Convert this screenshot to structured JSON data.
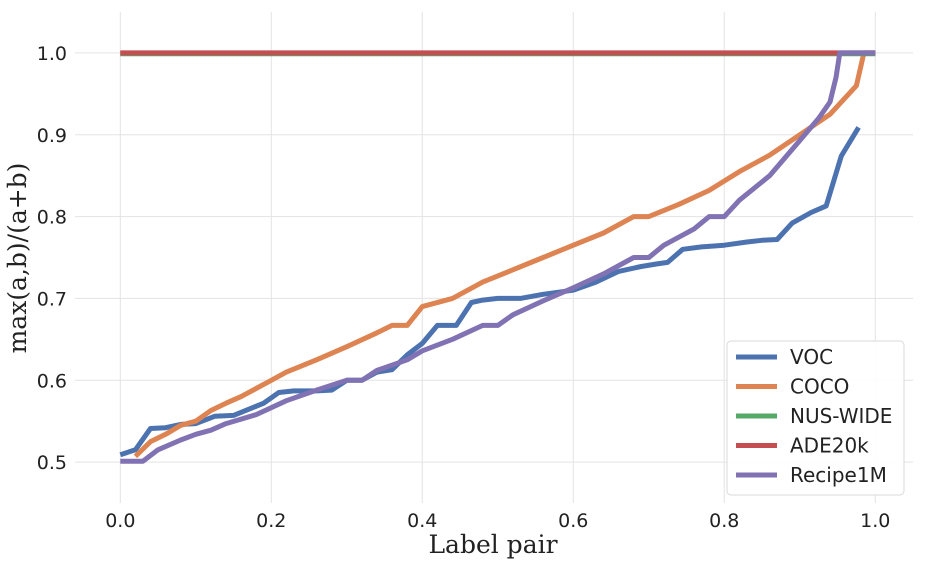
{
  "chart_data": {
    "type": "line",
    "xlabel": "Label pair",
    "ylabel": "max(a,b)/(a+b)",
    "xlim": [
      -0.06,
      1.05
    ],
    "ylim": [
      0.45,
      1.05
    ],
    "xticks": [
      0.0,
      0.2,
      0.4,
      0.6,
      0.8,
      1.0
    ],
    "xtick_labels": [
      "0.0",
      "0.2",
      "0.4",
      "0.6",
      "0.8",
      "1.0"
    ],
    "yticks": [
      0.5,
      0.6,
      0.7,
      0.8,
      0.9,
      1.0
    ],
    "ytick_labels": [
      "0.5",
      "0.6",
      "0.7",
      "0.8",
      "0.9",
      "1.0"
    ],
    "grid": true,
    "legend_position": "bottom-right",
    "series": [
      {
        "name": "VOC",
        "color": "#4c72b0",
        "points": [
          [
            0.0,
            0.509
          ],
          [
            0.02,
            0.515
          ],
          [
            0.04,
            0.541
          ],
          [
            0.06,
            0.542
          ],
          [
            0.08,
            0.546
          ],
          [
            0.1,
            0.547
          ],
          [
            0.125,
            0.556
          ],
          [
            0.15,
            0.557
          ],
          [
            0.19,
            0.572
          ],
          [
            0.21,
            0.585
          ],
          [
            0.23,
            0.587
          ],
          [
            0.26,
            0.587
          ],
          [
            0.28,
            0.588
          ],
          [
            0.3,
            0.6
          ],
          [
            0.32,
            0.6
          ],
          [
            0.34,
            0.61
          ],
          [
            0.36,
            0.613
          ],
          [
            0.38,
            0.631
          ],
          [
            0.4,
            0.645
          ],
          [
            0.42,
            0.667
          ],
          [
            0.445,
            0.667
          ],
          [
            0.465,
            0.695
          ],
          [
            0.48,
            0.698
          ],
          [
            0.5,
            0.7
          ],
          [
            0.53,
            0.7
          ],
          [
            0.56,
            0.705
          ],
          [
            0.6,
            0.71
          ],
          [
            0.63,
            0.72
          ],
          [
            0.66,
            0.733
          ],
          [
            0.69,
            0.739
          ],
          [
            0.71,
            0.742
          ],
          [
            0.725,
            0.744
          ],
          [
            0.745,
            0.76
          ],
          [
            0.77,
            0.763
          ],
          [
            0.8,
            0.765
          ],
          [
            0.83,
            0.769
          ],
          [
            0.85,
            0.771
          ],
          [
            0.87,
            0.772
          ],
          [
            0.89,
            0.792
          ],
          [
            0.915,
            0.805
          ],
          [
            0.935,
            0.813
          ],
          [
            0.955,
            0.874
          ],
          [
            0.978,
            0.909
          ]
        ]
      },
      {
        "name": "COCO",
        "color": "#dd8452",
        "points": [
          [
            0.02,
            0.507
          ],
          [
            0.04,
            0.525
          ],
          [
            0.06,
            0.534
          ],
          [
            0.08,
            0.545
          ],
          [
            0.1,
            0.55
          ],
          [
            0.12,
            0.563
          ],
          [
            0.14,
            0.572
          ],
          [
            0.16,
            0.58
          ],
          [
            0.2,
            0.6
          ],
          [
            0.22,
            0.61
          ],
          [
            0.26,
            0.625
          ],
          [
            0.3,
            0.641
          ],
          [
            0.34,
            0.658
          ],
          [
            0.36,
            0.667
          ],
          [
            0.38,
            0.667
          ],
          [
            0.4,
            0.69
          ],
          [
            0.44,
            0.7
          ],
          [
            0.48,
            0.72
          ],
          [
            0.52,
            0.735
          ],
          [
            0.56,
            0.75
          ],
          [
            0.6,
            0.765
          ],
          [
            0.64,
            0.78
          ],
          [
            0.68,
            0.8
          ],
          [
            0.7,
            0.8
          ],
          [
            0.74,
            0.815
          ],
          [
            0.78,
            0.832
          ],
          [
            0.82,
            0.855
          ],
          [
            0.86,
            0.875
          ],
          [
            0.9,
            0.9
          ],
          [
            0.94,
            0.925
          ],
          [
            0.96,
            0.945
          ],
          [
            0.975,
            0.96
          ],
          [
            0.985,
            1.0
          ],
          [
            1.0,
            1.0
          ]
        ]
      },
      {
        "name": "NUS-WIDE",
        "color": "#55a868",
        "points": [
          [
            0.0,
            0.999
          ],
          [
            1.0,
            0.999
          ]
        ]
      },
      {
        "name": "ADE20k",
        "color": "#c44e52",
        "points": [
          [
            0.0,
            1.0
          ],
          [
            1.0,
            1.0
          ]
        ]
      },
      {
        "name": "Recipe1M",
        "color": "#8172b3",
        "points": [
          [
            0.0,
            0.501
          ],
          [
            0.03,
            0.501
          ],
          [
            0.05,
            0.515
          ],
          [
            0.08,
            0.527
          ],
          [
            0.1,
            0.534
          ],
          [
            0.12,
            0.539
          ],
          [
            0.14,
            0.547
          ],
          [
            0.18,
            0.558
          ],
          [
            0.22,
            0.575
          ],
          [
            0.26,
            0.588
          ],
          [
            0.3,
            0.6
          ],
          [
            0.32,
            0.6
          ],
          [
            0.34,
            0.612
          ],
          [
            0.38,
            0.625
          ],
          [
            0.4,
            0.636
          ],
          [
            0.44,
            0.65
          ],
          [
            0.48,
            0.667
          ],
          [
            0.5,
            0.667
          ],
          [
            0.52,
            0.68
          ],
          [
            0.56,
            0.697
          ],
          [
            0.6,
            0.713
          ],
          [
            0.64,
            0.73
          ],
          [
            0.68,
            0.75
          ],
          [
            0.7,
            0.75
          ],
          [
            0.72,
            0.765
          ],
          [
            0.76,
            0.785
          ],
          [
            0.78,
            0.8
          ],
          [
            0.8,
            0.8
          ],
          [
            0.82,
            0.82
          ],
          [
            0.86,
            0.85
          ],
          [
            0.9,
            0.893
          ],
          [
            0.925,
            0.92
          ],
          [
            0.94,
            0.94
          ],
          [
            0.948,
            0.97
          ],
          [
            0.953,
            1.0
          ],
          [
            1.0,
            1.0
          ]
        ]
      }
    ]
  }
}
